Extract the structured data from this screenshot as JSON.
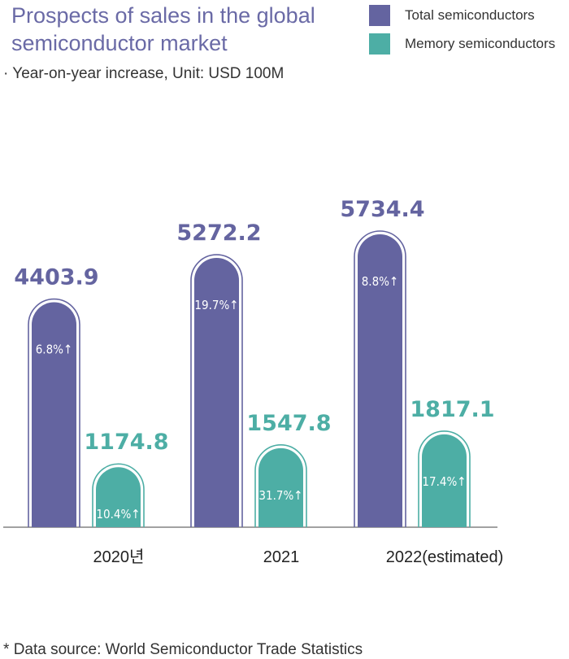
{
  "chart_data": {
    "type": "bar",
    "title": "Prospects of sales in the global semiconductor market",
    "subtitle": "Year-on-year increase, Unit: USD 100M",
    "subtitle_bullet": "·",
    "categories": [
      "2020년",
      "2021",
      "2022(estimated)"
    ],
    "series": [
      {
        "name": "Total semiconductors",
        "color": "#6464a0",
        "values": [
          4403.9,
          5272.2,
          5734.4
        ],
        "value_labels": [
          "4403.9",
          "5272.2",
          "5734.4"
        ],
        "growth_labels": [
          "6.8%↑",
          "19.7%↑",
          "8.8%↑"
        ]
      },
      {
        "name": "Memory semiconductors",
        "color": "#4daea5",
        "values": [
          1174.8,
          1547.8,
          1817.1
        ],
        "value_labels": [
          "1174.8",
          "1547.8",
          "1817.1"
        ],
        "growth_labels": [
          "10.4%↑",
          "31.7%↑",
          "17.4%↑"
        ]
      }
    ],
    "legend_position": "top-right",
    "grid": false,
    "source_note": "Data source: World Semiconductor Trade Statistics",
    "source_marker": "*"
  }
}
